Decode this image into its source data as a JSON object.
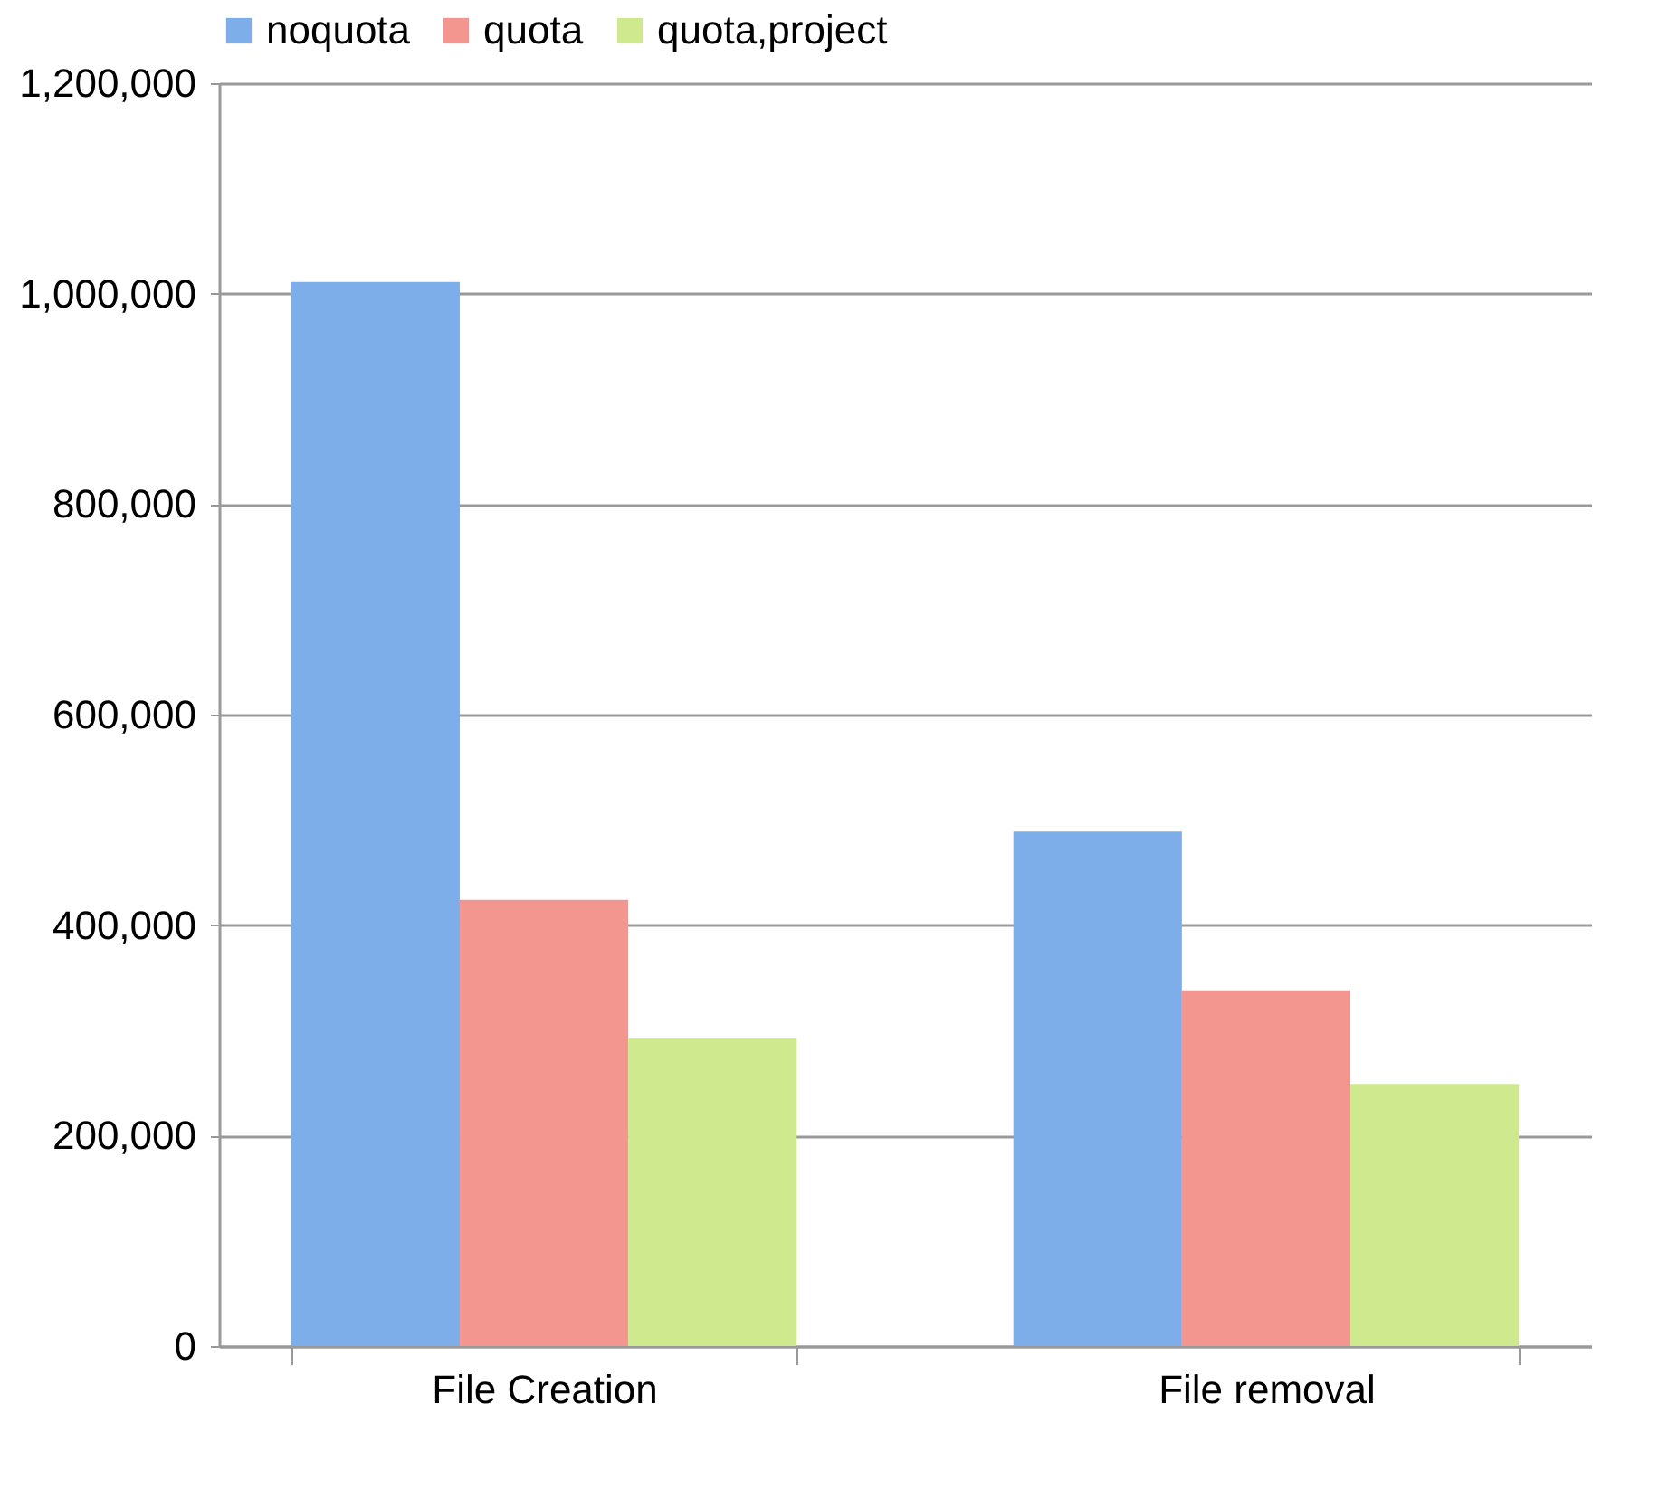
{
  "chart_data": {
    "type": "bar",
    "categories": [
      "File Creation",
      "File removal"
    ],
    "series": [
      {
        "name": "noquota",
        "color": "#7eaee9",
        "values": [
          1011000,
          489000
        ]
      },
      {
        "name": "quota",
        "color": "#f2968f",
        "values": [
          424000,
          338000
        ]
      },
      {
        "name": "quota,project",
        "color": "#cfe98e",
        "values": [
          293000,
          249000
        ]
      }
    ],
    "ylim": [
      0,
      1200000
    ],
    "yticks": [
      0,
      {
        "value": 200000,
        "label": "200,000"
      },
      {
        "value": 400000,
        "label": "400,000"
      },
      {
        "value": 600000,
        "label": "600,000"
      },
      {
        "value": 800000,
        "label": "800,000"
      },
      {
        "value": 1000000,
        "label": "1,000,000"
      },
      {
        "value": 1200000,
        "label": "1,200,000"
      }
    ],
    "grid": "y",
    "legend": "top"
  }
}
